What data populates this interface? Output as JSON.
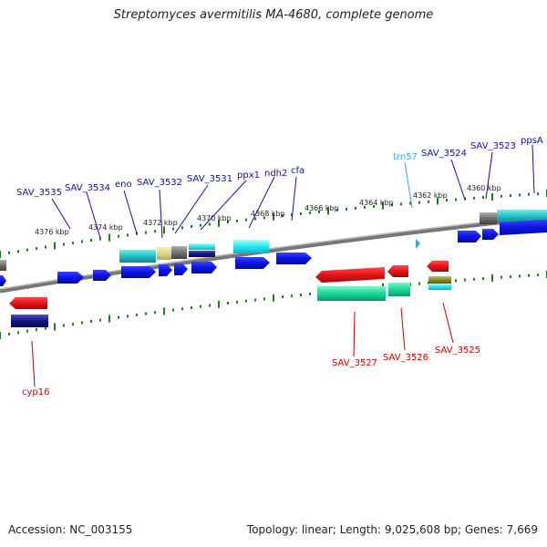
{
  "title": "Streptomyces avermitilis MA-4680, complete genome",
  "footer": {
    "accession": "Accession: NC_003155",
    "topology": "Topology: linear; Length: 9,025,608 bp; Genes: 7,669"
  },
  "colors": {
    "backbone": "#8c8c8c",
    "tick": "#1e7a1e",
    "cds_blue": "#0a14e6",
    "cds_red": "#e61414",
    "label_top": "#1010a0",
    "label_bottom": "#cc0000",
    "label_rna": "#3aa8d8"
  },
  "scale_labels": [
    "4376 kbp",
    "4374 kbp",
    "4372 kbp",
    "4370 kbp",
    "4368 kbp",
    "4366 kbp",
    "4364 kbp",
    "4362 kbp",
    "4360 kbp"
  ],
  "top_labels": [
    "SAV_3535",
    "SAV_3534",
    "eno",
    "SAV_3532",
    "SAV_3531",
    "ppx1",
    "ndh2",
    "cfa",
    "trn57",
    "SAV_3524",
    "SAV_3523",
    "ppsA"
  ],
  "bottom_labels": [
    "cyp16",
    "SAV_3527",
    "SAV_3526",
    "SAV_3525"
  ]
}
